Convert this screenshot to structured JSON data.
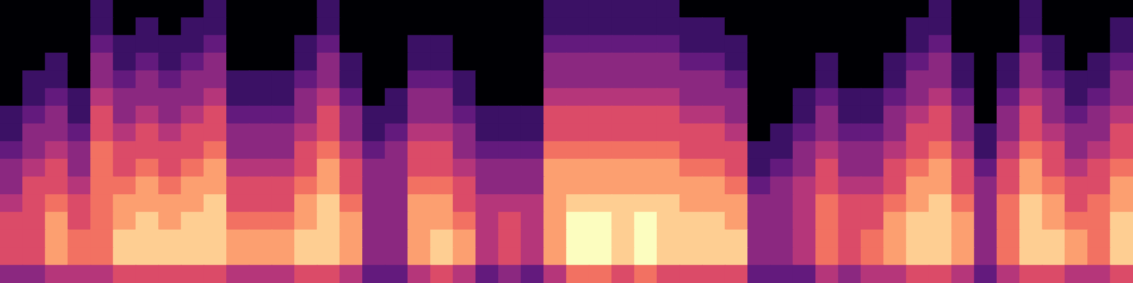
{
  "chart_data": {
    "type": "heatmap",
    "tick_labels": false,
    "zlim": [
      0,
      10
    ],
    "cells": [
      [
        0,
        0,
        0,
        0,
        2,
        0,
        0,
        0,
        0,
        2,
        0,
        0,
        0,
        0,
        2,
        0,
        0,
        0,
        0,
        0,
        0,
        0,
        0,
        0,
        2,
        2,
        2,
        2,
        2,
        2,
        0,
        0,
        0,
        0,
        0,
        0,
        0,
        0,
        0,
        0,
        0,
        2,
        0,
        0,
        0,
        2,
        0,
        0,
        0,
        0
      ],
      [
        0,
        0,
        0,
        0,
        2,
        0,
        2,
        0,
        2,
        2,
        0,
        0,
        0,
        0,
        2,
        0,
        0,
        0,
        0,
        0,
        0,
        0,
        0,
        0,
        2,
        2,
        2,
        2,
        2,
        2,
        2,
        2,
        0,
        0,
        0,
        0,
        0,
        0,
        0,
        0,
        2,
        2,
        0,
        0,
        0,
        2,
        0,
        0,
        0,
        2
      ],
      [
        0,
        0,
        0,
        0,
        3,
        2,
        2,
        2,
        2,
        3,
        0,
        0,
        0,
        2,
        3,
        0,
        0,
        0,
        2,
        2,
        0,
        0,
        0,
        0,
        3,
        3,
        3,
        3,
        3,
        3,
        2,
        2,
        2,
        0,
        0,
        0,
        0,
        0,
        0,
        0,
        2,
        3,
        0,
        0,
        0,
        3,
        2,
        0,
        0,
        2
      ],
      [
        0,
        0,
        2,
        0,
        4,
        2,
        3,
        2,
        3,
        4,
        0,
        0,
        0,
        2,
        4,
        2,
        0,
        0,
        2,
        2,
        0,
        0,
        0,
        0,
        4,
        4,
        4,
        4,
        4,
        4,
        3,
        3,
        2,
        0,
        0,
        0,
        2,
        0,
        0,
        2,
        3,
        4,
        2,
        0,
        2,
        4,
        2,
        0,
        2,
        3
      ],
      [
        0,
        2,
        2,
        0,
        4,
        3,
        4,
        3,
        4,
        4,
        2,
        2,
        2,
        3,
        4,
        2,
        0,
        0,
        3,
        3,
        2,
        0,
        0,
        0,
        4,
        4,
        4,
        4,
        4,
        4,
        4,
        4,
        3,
        0,
        0,
        0,
        2,
        0,
        0,
        2,
        4,
        4,
        2,
        0,
        2,
        4,
        3,
        2,
        2,
        4
      ],
      [
        0,
        2,
        3,
        2,
        5,
        4,
        4,
        4,
        4,
        5,
        2,
        2,
        2,
        4,
        5,
        3,
        0,
        2,
        4,
        4,
        2,
        0,
        0,
        0,
        5,
        5,
        5,
        5,
        5,
        5,
        4,
        4,
        4,
        0,
        0,
        2,
        3,
        2,
        2,
        3,
        4,
        5,
        3,
        0,
        3,
        5,
        4,
        2,
        3,
        4
      ],
      [
        2,
        3,
        4,
        2,
        6,
        4,
        5,
        4,
        5,
        6,
        3,
        3,
        3,
        4,
        6,
        4,
        2,
        2,
        4,
        4,
        3,
        2,
        2,
        2,
        6,
        6,
        6,
        6,
        6,
        6,
        5,
        5,
        4,
        0,
        0,
        2,
        4,
        2,
        2,
        4,
        5,
        6,
        4,
        0,
        4,
        6,
        4,
        3,
        4,
        5
      ],
      [
        2,
        4,
        4,
        3,
        6,
        5,
        6,
        5,
        6,
        6,
        4,
        4,
        4,
        5,
        6,
        4,
        2,
        3,
        5,
        5,
        4,
        2,
        2,
        2,
        6,
        6,
        6,
        6,
        6,
        6,
        6,
        6,
        5,
        0,
        2,
        3,
        4,
        3,
        3,
        4,
        6,
        6,
        4,
        2,
        4,
        6,
        5,
        4,
        4,
        6
      ],
      [
        3,
        4,
        5,
        4,
        7,
        6,
        6,
        6,
        6,
        7,
        4,
        4,
        4,
        6,
        7,
        5,
        3,
        4,
        6,
        6,
        4,
        3,
        3,
        3,
        7,
        7,
        7,
        7,
        7,
        7,
        6,
        6,
        6,
        2,
        2,
        4,
        5,
        4,
        4,
        5,
        6,
        7,
        5,
        2,
        5,
        7,
        6,
        4,
        5,
        6
      ],
      [
        4,
        5,
        6,
        4,
        7,
        6,
        7,
        6,
        7,
        8,
        5,
        5,
        5,
        6,
        8,
        6,
        4,
        4,
        6,
        6,
        5,
        4,
        4,
        4,
        8,
        8,
        8,
        8,
        8,
        8,
        7,
        7,
        6,
        2,
        3,
        4,
        6,
        4,
        4,
        6,
        7,
        8,
        6,
        3,
        6,
        8,
        6,
        5,
        6,
        7
      ],
      [
        4,
        6,
        6,
        5,
        7,
        7,
        8,
        7,
        8,
        8,
        6,
        6,
        6,
        7,
        8,
        6,
        4,
        4,
        7,
        7,
        6,
        4,
        4,
        4,
        8,
        8,
        8,
        8,
        8,
        8,
        8,
        8,
        7,
        3,
        4,
        5,
        6,
        5,
        5,
        6,
        8,
        8,
        6,
        4,
        6,
        8,
        7,
        6,
        6,
        8
      ],
      [
        5,
        6,
        7,
        6,
        7,
        8,
        8,
        8,
        8,
        9,
        6,
        6,
        6,
        8,
        9,
        7,
        4,
        4,
        8,
        8,
        6,
        5,
        5,
        5,
        8,
        9,
        9,
        9,
        9,
        9,
        8,
        8,
        8,
        4,
        4,
        5,
        7,
        6,
        6,
        7,
        8,
        9,
        7,
        4,
        7,
        9,
        8,
        6,
        7,
        8
      ],
      [
        6,
        6,
        8,
        6,
        7,
        8,
        9,
        8,
        9,
        9,
        7,
        7,
        7,
        8,
        9,
        8,
        4,
        4,
        8,
        8,
        7,
        5,
        6,
        5,
        8,
        10,
        10,
        9,
        10,
        9,
        9,
        9,
        8,
        4,
        4,
        5,
        7,
        6,
        6,
        8,
        9,
        9,
        8,
        4,
        7,
        9,
        8,
        7,
        7,
        9
      ],
      [
        6,
        6,
        8,
        7,
        7,
        9,
        9,
        9,
        9,
        9,
        8,
        8,
        8,
        9,
        9,
        8,
        4,
        4,
        8,
        9,
        8,
        5,
        6,
        5,
        8,
        10,
        10,
        9,
        10,
        9,
        9,
        9,
        9,
        4,
        4,
        5,
        7,
        6,
        7,
        8,
        9,
        9,
        8,
        4,
        7,
        9,
        9,
        8,
        7,
        9
      ],
      [
        6,
        6,
        8,
        7,
        7,
        9,
        9,
        9,
        9,
        9,
        8,
        8,
        8,
        9,
        9,
        8,
        4,
        4,
        8,
        9,
        8,
        5,
        6,
        5,
        8,
        10,
        10,
        9,
        10,
        9,
        9,
        9,
        9,
        4,
        4,
        5,
        7,
        6,
        7,
        8,
        9,
        9,
        8,
        4,
        7,
        9,
        9,
        8,
        7,
        9
      ],
      [
        4,
        4,
        5,
        5,
        5,
        6,
        6,
        6,
        6,
        6,
        5,
        5,
        5,
        6,
        6,
        5,
        3,
        3,
        5,
        6,
        5,
        3,
        4,
        3,
        5,
        7,
        7,
        6,
        7,
        6,
        6,
        6,
        6,
        3,
        3,
        3,
        5,
        4,
        5,
        5,
        6,
        6,
        5,
        3,
        5,
        6,
        6,
        5,
        5,
        6
      ]
    ]
  }
}
